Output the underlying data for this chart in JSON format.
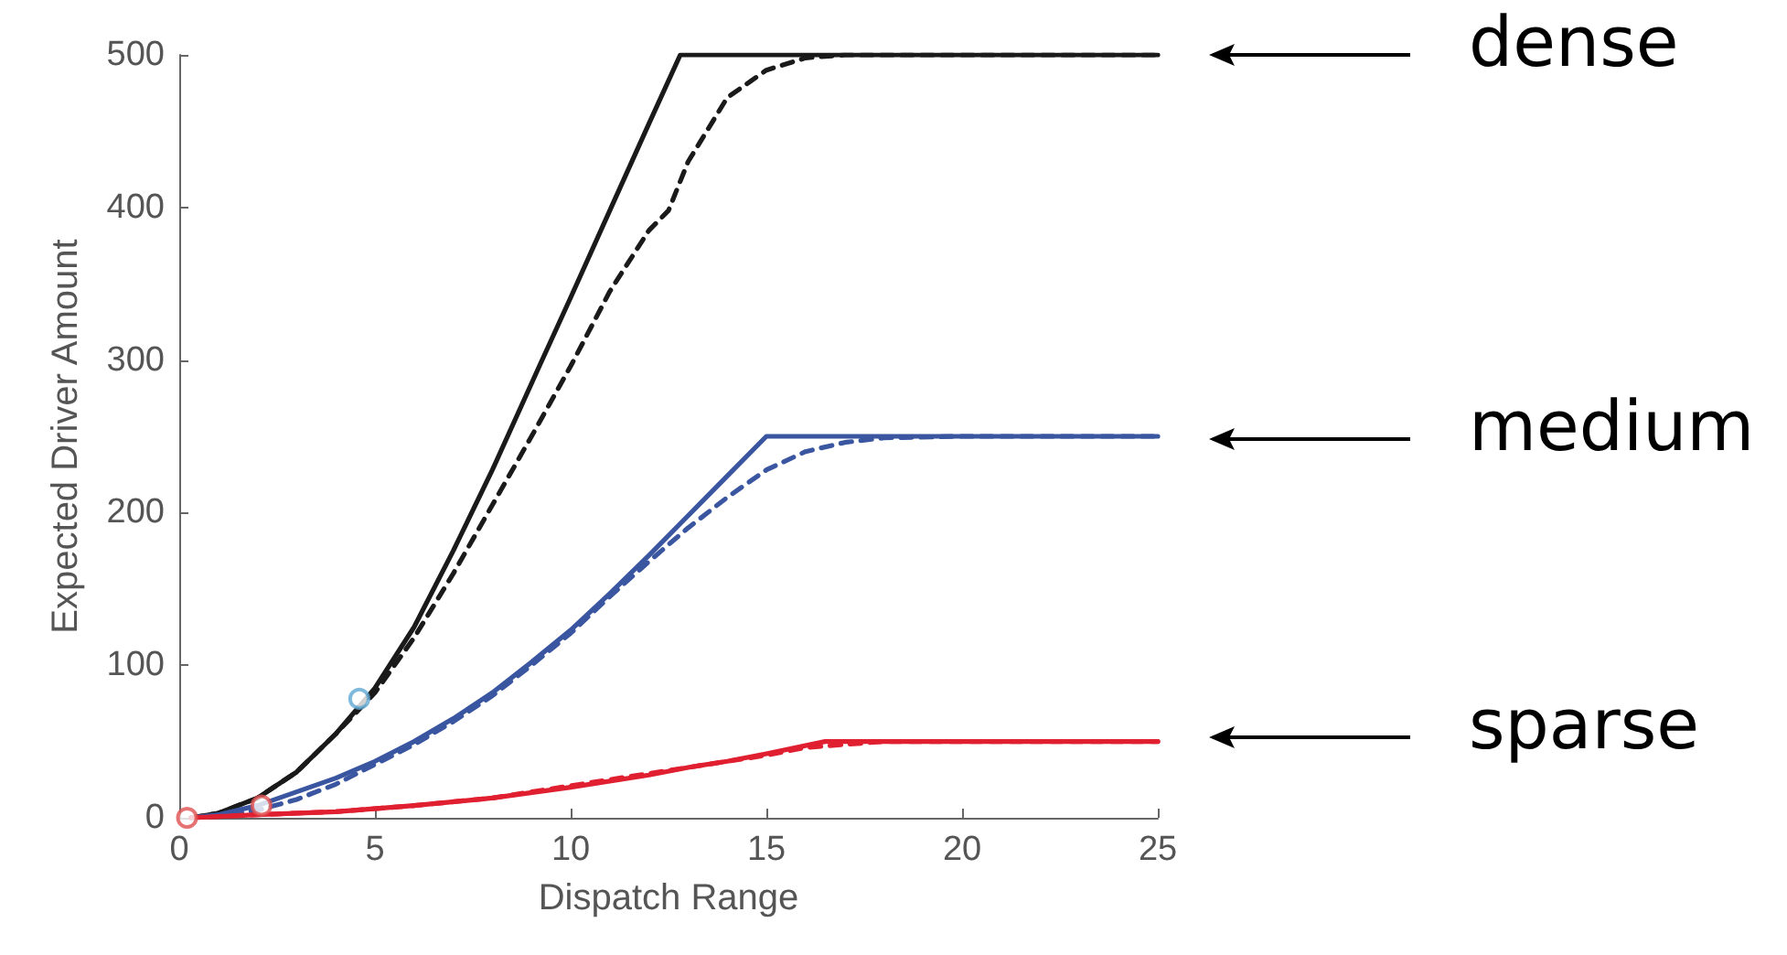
{
  "chart_data": {
    "type": "line",
    "xlabel": "Dispatch Range",
    "ylabel": "Expected Driver Amount",
    "xlim": [
      0,
      25
    ],
    "xticks": [
      0,
      5,
      10,
      15,
      20,
      25
    ],
    "ylim": [
      0,
      500
    ],
    "yticks": [
      0,
      100,
      200,
      300,
      400,
      500
    ],
    "grid": false,
    "marker": "none",
    "series": [
      {
        "color": "#1a1a1a",
        "line_style": "solid",
        "x": [
          0.3,
          1,
          2,
          3,
          4,
          5,
          6,
          7,
          8,
          9.2,
          10,
          11,
          12,
          12.8,
          25
        ],
        "values": [
          0,
          3,
          13,
          30,
          55,
          85,
          125,
          175,
          228,
          296,
          341,
          398,
          455,
          500,
          500
        ]
      },
      {
        "color": "#1a1a1a",
        "line_style": "dashed",
        "x": [
          0.3,
          1,
          2,
          3,
          4,
          5,
          6,
          7,
          8,
          9,
          10,
          11,
          12,
          12.5,
          13,
          14,
          15,
          16,
          17,
          25
        ],
        "values": [
          0,
          3,
          13,
          30,
          55,
          82,
          118,
          160,
          205,
          250,
          296,
          345,
          385,
          398,
          430,
          472,
          490,
          498,
          500,
          500
        ]
      },
      {
        "color": "#3a56a0",
        "line_style": "solid",
        "x": [
          0.3,
          1,
          2,
          3,
          4,
          5,
          6,
          7,
          8,
          9,
          10,
          11,
          12,
          13,
          14,
          15,
          25
        ],
        "values": [
          0,
          2,
          8,
          17,
          26,
          37,
          50,
          65,
          82,
          102,
          123,
          147,
          172,
          198,
          224,
          250,
          250
        ]
      },
      {
        "color": "#3a56a0",
        "line_style": "dashed",
        "x": [
          0.3,
          1,
          2,
          3,
          4,
          5,
          6,
          7,
          8,
          9,
          10,
          11,
          12,
          13,
          14,
          15,
          16,
          17,
          18,
          20,
          25
        ],
        "values": [
          0,
          1,
          5,
          12,
          22,
          35,
          48,
          63,
          80,
          100,
          121,
          145,
          168,
          190,
          210,
          228,
          240,
          246,
          249,
          250,
          250
        ]
      },
      {
        "color": "#e02030",
        "line_style": "solid",
        "x": [
          0.3,
          2,
          4,
          6,
          8,
          10,
          12,
          13,
          14,
          15,
          16.5,
          25
        ],
        "values": [
          0,
          2,
          4,
          8,
          13,
          20,
          28,
          33,
          37,
          42,
          50,
          50
        ]
      },
      {
        "color": "#e02030",
        "line_style": "dashed",
        "x": [
          0.3,
          2,
          4,
          6,
          8,
          10,
          12,
          14,
          15,
          16,
          17,
          18,
          25
        ],
        "values": [
          0,
          2,
          4,
          8,
          13,
          21,
          29,
          37,
          41,
          46,
          48,
          50,
          50
        ]
      },
      {
        "type": "scatter",
        "marker": "circle",
        "color": "#5fa8d3",
        "x": [
          4.6
        ],
        "values": [
          78
        ]
      },
      {
        "type": "scatter",
        "marker": "circle",
        "color": "#e05050",
        "x": [
          0.2,
          2.1
        ],
        "values": [
          0,
          8
        ]
      }
    ],
    "annotations": [
      "dense",
      "medium",
      "sparse"
    ]
  }
}
